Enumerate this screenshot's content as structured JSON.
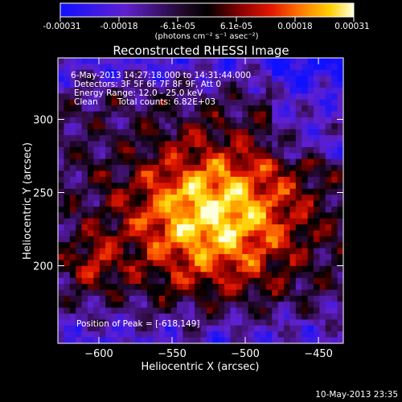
{
  "chart_data": {
    "type": "heatmap",
    "title": "Reconstructed RHESSI Image",
    "xlabel": "Heliocentric X (arcsec)",
    "ylabel": "Heliocentric Y (arcsec)",
    "xlim": [
      -628,
      -433
    ],
    "ylim": [
      147,
      342
    ],
    "xticks": [
      -600,
      -550,
      -500,
      -450
    ],
    "yticks": [
      200,
      250,
      300
    ],
    "colormap": "blue-purple-black-red-orange-yellow-white",
    "colorbar": {
      "range": [
        -0.00031,
        0.00031
      ],
      "ticks": [
        "-0.00031",
        "-0.00018",
        "-6.1e-05",
        "6.1e-05",
        "0.00018",
        "0.00031"
      ],
      "units": "(photons cm⁻² s⁻¹ asec⁻²)",
      "colors": [
        "#2020ff",
        "#6b2bd6",
        "#3c1050",
        "#000000",
        "#8a0000",
        "#e01000",
        "#ff6a00",
        "#ffb000",
        "#ffe000",
        "#ffffd0"
      ]
    },
    "annotations": {
      "time_range": "6-May-2013 14:27:18.000 to 14:31:44.000",
      "detectors": "Detectors: 3F 5F 6F 7F 8F 9F, Att 0",
      "energy": "Energy Range: 12.0 - 25.0 keV",
      "clean": "Clean",
      "total_counts": "Total counts: 6.82E+03",
      "peak": "Position of Peak = [-618,149]"
    },
    "peak_position": [
      -618,
      149
    ],
    "grid": false
  },
  "footer_date": "10-May-2013 23:35"
}
